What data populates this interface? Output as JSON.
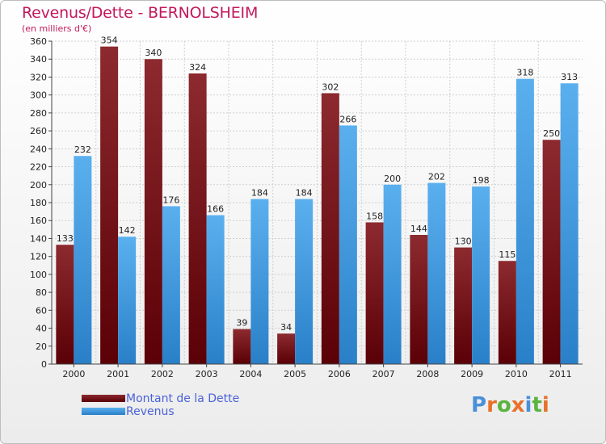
{
  "header": {
    "title": "Revenus/Dette - BERNOLSHEIM",
    "subtitle": "(en milliers d'€)"
  },
  "chart_data": {
    "type": "bar",
    "categories": [
      "2000",
      "2001",
      "2002",
      "2003",
      "2004",
      "2005",
      "2006",
      "2007",
      "2008",
      "2009",
      "2010",
      "2011"
    ],
    "series": [
      {
        "name": "Montant de la Dette",
        "color": "#7a0f14",
        "values": [
          133,
          354,
          340,
          324,
          39,
          34,
          302,
          158,
          144,
          130,
          115,
          250
        ]
      },
      {
        "name": "Revenus",
        "color": "#3c9ce4",
        "values": [
          232,
          142,
          176,
          166,
          184,
          184,
          266,
          200,
          202,
          198,
          318,
          313
        ]
      }
    ],
    "ylim": [
      0,
      360
    ],
    "ytick_step": 20,
    "grid": true,
    "legend": "bottom-left"
  },
  "logo": {
    "text": "Proxiti",
    "colors": [
      "#4a90d9",
      "#e8712a",
      "#5bb33e",
      "#e8712a",
      "#4a90d9",
      "#5bb33e",
      "#e8712a"
    ]
  }
}
